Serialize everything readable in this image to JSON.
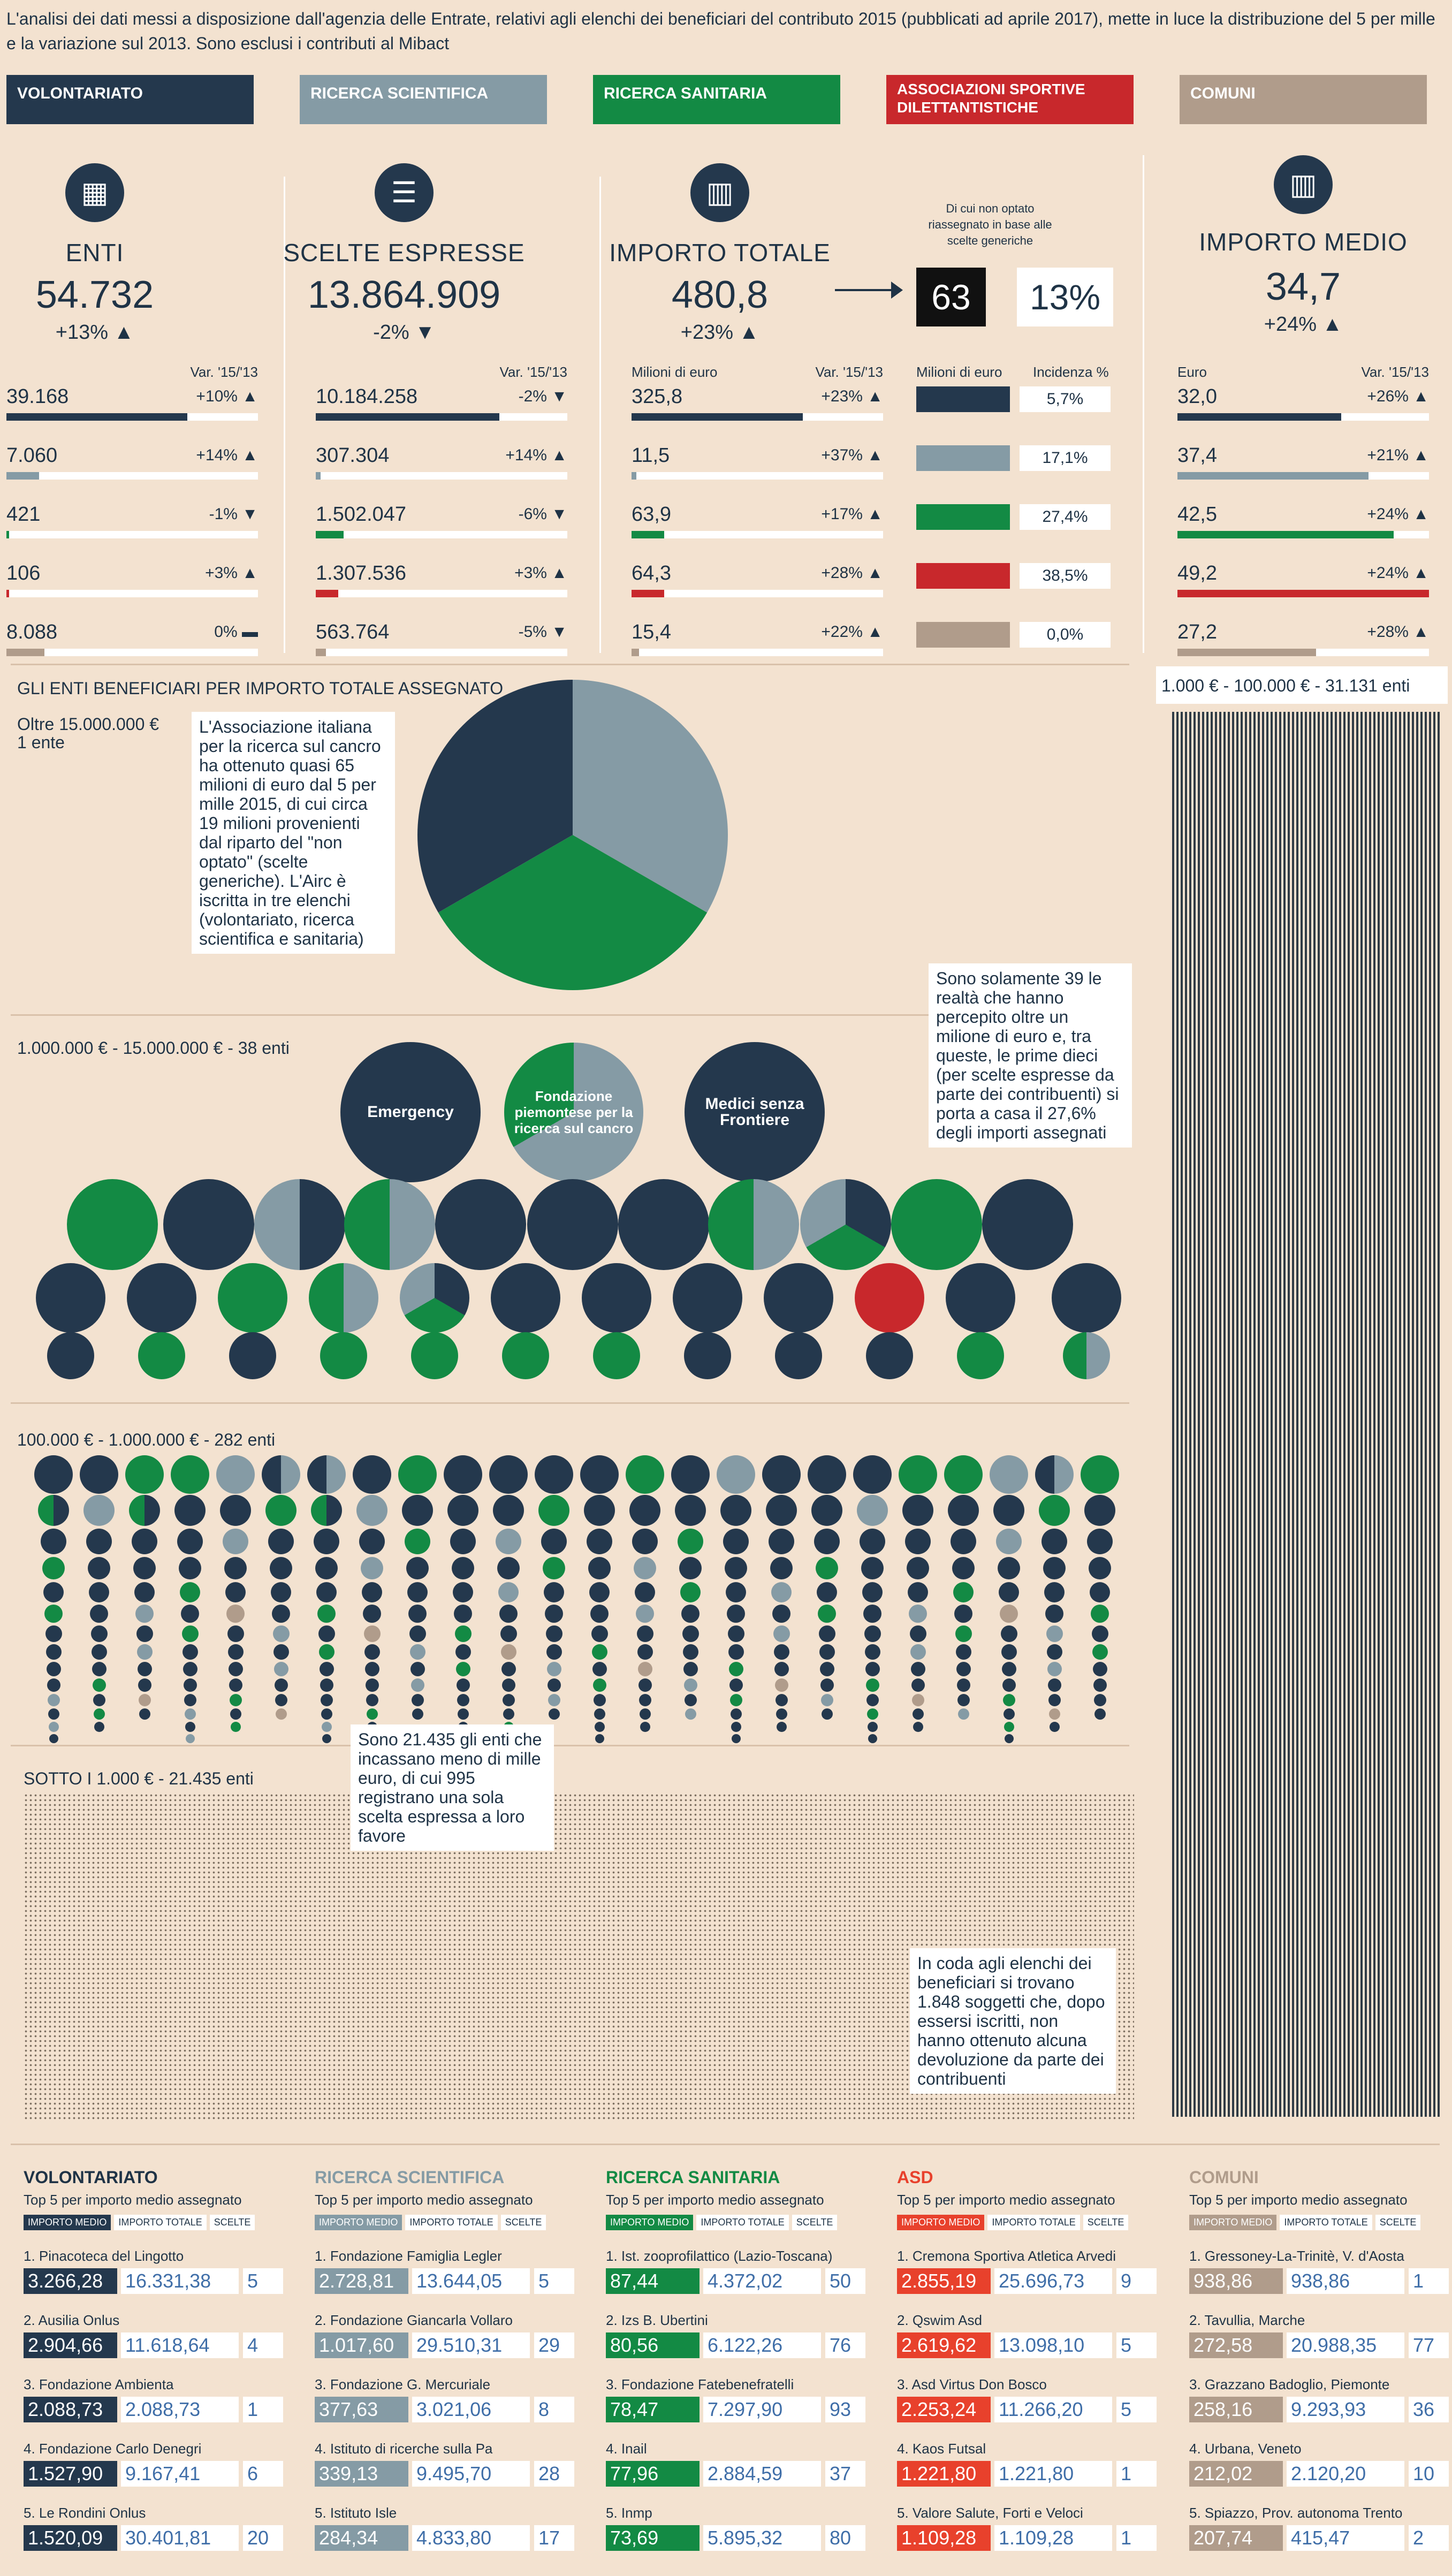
{
  "intro": "L'analisi dei dati messi a disposizione dall'agenzia delle Entrate, relativi agli elenchi dei beneficiari del contributo 2015 (pubblicati ad aprile 2017), mette in luce la distribuzione del 5 per mille e la variazione sul 2013. Sono esclusi i contributi al Mibact",
  "colors": {
    "volontariato": "#24384d",
    "ricerca_scientifica": "#859ba5",
    "ricerca_sanitaria": "#138a44",
    "asd": "#c8282c",
    "comuni": "#b09c8b",
    "background": "#f3e2d0"
  },
  "categories": [
    {
      "label": "VOLONTARIATO",
      "color": "#24384d"
    },
    {
      "label": "RICERCA SCIENTIFICA",
      "color": "#859ba5"
    },
    {
      "label": "RICERCA SANITARIA",
      "color": "#138a44"
    },
    {
      "label": "ASSOCIAZIONI SPORTIVE DILETTANTISTICHE",
      "color": "#c8282c"
    },
    {
      "label": "COMUNI",
      "color": "#b09c8b"
    }
  ],
  "stats": {
    "enti": {
      "title": "ENTI",
      "value": "54.732",
      "var": "+13%",
      "var_dir": "up",
      "sub_right": "Var. '15/'13",
      "rows": [
        {
          "value": "39.168",
          "var": "+10%",
          "dir": "up",
          "share": 0.72
        },
        {
          "value": "7.060",
          "var": "+14%",
          "dir": "up",
          "share": 0.13
        },
        {
          "value": "421",
          "var": "-1%",
          "dir": "down",
          "share": 0.01
        },
        {
          "value": "106",
          "var": "+3%",
          "dir": "up",
          "share": 0.01
        },
        {
          "value": "8.088",
          "var": "0%",
          "dir": "flat",
          "share": 0.15
        }
      ]
    },
    "scelte": {
      "title": "SCELTE ESPRESSE",
      "value": "13.864.909",
      "var": "-2%",
      "var_dir": "down",
      "sub_right": "Var. '15/'13",
      "rows": [
        {
          "value": "10.184.258",
          "var": "-2%",
          "dir": "down",
          "share": 0.73
        },
        {
          "value": "307.304",
          "var": "+14%",
          "dir": "up",
          "share": 0.02
        },
        {
          "value": "1.502.047",
          "var": "-6%",
          "dir": "down",
          "share": 0.11
        },
        {
          "value": "1.307.536",
          "var": "+3%",
          "dir": "up",
          "share": 0.09
        },
        {
          "value": "563.764",
          "var": "-5%",
          "dir": "down",
          "share": 0.04
        }
      ]
    },
    "importo": {
      "title": "IMPORTO TOTALE",
      "value": "480,8",
      "var": "+23%",
      "var_dir": "up",
      "sub_left": "Milioni di euro",
      "sub_right": "Var. '15/'13",
      "rows": [
        {
          "value": "325,8",
          "var": "+23%",
          "dir": "up",
          "share": 0.68
        },
        {
          "value": "11,5",
          "var": "+37%",
          "dir": "up",
          "share": 0.02
        },
        {
          "value": "63,9",
          "var": "+17%",
          "dir": "up",
          "share": 0.13
        },
        {
          "value": "64,3",
          "var": "+28%",
          "dir": "up",
          "share": 0.13
        },
        {
          "value": "15,4",
          "var": "+22%",
          "dir": "up",
          "share": 0.03
        }
      ]
    },
    "non_optato": {
      "caption": "Di cui non optato riassegnato in base alle scelte generiche",
      "value": "63",
      "pct": "13%",
      "sub_left": "Milioni di euro",
      "sub_right": "Incidenza %",
      "rows": [
        "5,7%",
        "17,1%",
        "27,4%",
        "38,5%",
        "0,0%"
      ]
    },
    "medio": {
      "title": "IMPORTO MEDIO",
      "value": "34,7",
      "var": "+24%",
      "var_dir": "up",
      "sub_left": "Euro",
      "sub_right": "Var. '15/'13",
      "rows": [
        {
          "value": "32,0",
          "var": "+26%",
          "dir": "up",
          "share": 0.65
        },
        {
          "value": "37,4",
          "var": "+21%",
          "dir": "up",
          "share": 0.76
        },
        {
          "value": "42,5",
          "var": "+24%",
          "dir": "up",
          "share": 0.86
        },
        {
          "value": "49,2",
          "var": "+24%",
          "dir": "up",
          "share": 1.0
        },
        {
          "value": "27,2",
          "var": "+28%",
          "dir": "up",
          "share": 0.55
        }
      ]
    }
  },
  "sections": {
    "by_amount_title": "GLI ENTI BENEFICIARI PER IMPORTO TOTALE ASSEGNATO",
    "oltre15_label": "Oltre 15.000.000 €",
    "oltre15_count": "1 ente",
    "airc_note": "L'Associazione italiana per la ricerca sul cancro ha ottenuto quasi 65 milioni di euro dal 5 per mille 2015, di cui circa 19 milioni provenienti dal riparto del \"non optato\" (scelte generiche). L'Airc è iscritta in tre elenchi (volontariato, ricerca scientifica e sanitaria)",
    "mil_title": "1.000.000 € - 15.000.000 € - 38 enti",
    "mil_note": "Sono solamente 39 le realtà che hanno percepito oltre un milione di euro e, tra queste, le prime dieci (per scelte espresse da parte dei contribuenti) si porta a casa il 27,6% degli importi assegnati",
    "big_labels": [
      "Emergency",
      "Fondazione piemontese per la ricerca sul cancro",
      "Medici senza Frontiere"
    ],
    "k100_title": "100.000 € - 1.000.000 € - 282 enti",
    "k1_title": "1.000 € - 100.000 € - 31.131 enti",
    "sotto_title": "SOTTO I 1.000 € - 21.435 enti",
    "sotto_note": "Sono 21.435 gli enti che incassano meno di mille euro, di cui 995 registrano una sola scelta espressa a loro favore",
    "coda_note": "In coda agli elenchi dei beneficiari si trovano 1.848 soggetti che, dopo essersi iscritti, non hanno ottenuto alcuna devoluzione da parte dei contribuenti"
  },
  "chart_data": {
    "type": "pie",
    "title": "Oltre 15.000.000 € - AIRC",
    "slices": [
      {
        "name": "Ricerca scientifica",
        "value": 1
      },
      {
        "name": "Ricerca sanitaria",
        "value": 1
      },
      {
        "name": "Volontariato",
        "value": 1
      }
    ]
  },
  "top5_common": {
    "subtitle": "Top 5 per importo medio assegnato",
    "tabs": [
      "IMPORTO MEDIO",
      "IMPORTO TOTALE",
      "SCELTE"
    ]
  },
  "top5": [
    {
      "title": "VOLONTARIATO",
      "color": "#24384d",
      "items": [
        {
          "name": "1. Pinacoteca del Lingotto",
          "medio": "3.266,28",
          "totale": "16.331,38",
          "scelte": "5"
        },
        {
          "name": "2. Ausilia Onlus",
          "medio": "2.904,66",
          "totale": "11.618,64",
          "scelte": "4"
        },
        {
          "name": "3. Fondazione Ambienta",
          "medio": "2.088,73",
          "totale": "2.088,73",
          "scelte": "1"
        },
        {
          "name": "4. Fondazione Carlo Denegri",
          "medio": "1.527,90",
          "totale": "9.167,41",
          "scelte": "6"
        },
        {
          "name": "5. Le Rondini Onlus",
          "medio": "1.520,09",
          "totale": "30.401,81",
          "scelte": "20"
        }
      ]
    },
    {
      "title": "RICERCA SCIENTIFICA",
      "color": "#859ba5",
      "items": [
        {
          "name": "1. Fondazione Famiglia Legler",
          "medio": "2.728,81",
          "totale": "13.644,05",
          "scelte": "5"
        },
        {
          "name": "2. Fondazione Giancarla Vollaro",
          "medio": "1.017,60",
          "totale": "29.510,31",
          "scelte": "29"
        },
        {
          "name": "3. Fondazione G. Mercuriale",
          "medio": "377,63",
          "totale": "3.021,06",
          "scelte": "8"
        },
        {
          "name": "4. Istituto di ricerche sulla Pa",
          "medio": "339,13",
          "totale": "9.495,70",
          "scelte": "28"
        },
        {
          "name": "5. Istituto Isle",
          "medio": "284,34",
          "totale": "4.833,80",
          "scelte": "17"
        }
      ]
    },
    {
      "title": "RICERCA SANITARIA",
      "color": "#138a44",
      "items": [
        {
          "name": "1. Ist. zooprofilattico (Lazio-Toscana)",
          "medio": "87,44",
          "totale": "4.372,02",
          "scelte": "50"
        },
        {
          "name": "2. Izs B. Ubertini",
          "medio": "80,56",
          "totale": "6.122,26",
          "scelte": "76"
        },
        {
          "name": "3. Fondazione Fatebenefratelli",
          "medio": "78,47",
          "totale": "7.297,90",
          "scelte": "93"
        },
        {
          "name": "4. Inail",
          "medio": "77,96",
          "totale": "2.884,59",
          "scelte": "37"
        },
        {
          "name": "5. Inmp",
          "medio": "73,69",
          "totale": "5.895,32",
          "scelte": "80"
        }
      ]
    },
    {
      "title": "ASD",
      "color": "#e8412c",
      "items": [
        {
          "name": "1. Cremona Sportiva Atletica Arvedi",
          "medio": "2.855,19",
          "totale": "25.696,73",
          "scelte": "9"
        },
        {
          "name": "2. Qswim Asd",
          "medio": "2.619,62",
          "totale": "13.098,10",
          "scelte": "5"
        },
        {
          "name": "3. Asd Virtus Don Bosco",
          "medio": "2.253,24",
          "totale": "11.266,20",
          "scelte": "5"
        },
        {
          "name": "4. Kaos Futsal",
          "medio": "1.221,80",
          "totale": "1.221,80",
          "scelte": "1"
        },
        {
          "name": "5. Valore Salute, Forti e Veloci",
          "medio": "1.109,28",
          "totale": "1.109,28",
          "scelte": "1"
        }
      ]
    },
    {
      "title": "COMUNI",
      "color": "#b09c8b",
      "items": [
        {
          "name": "1. Gressoney-La-Trinitè, V. d'Aosta",
          "medio": "938,86",
          "totale": "938,86",
          "scelte": "1"
        },
        {
          "name": "2. Tavullia, Marche",
          "medio": "272,58",
          "totale": "20.988,35",
          "scelte": "77"
        },
        {
          "name": "3. Grazzano Badoglio, Piemonte",
          "medio": "258,16",
          "totale": "9.293,93",
          "scelte": "36"
        },
        {
          "name": "4. Urbana, Veneto",
          "medio": "212,02",
          "totale": "2.120,20",
          "scelte": "10"
        },
        {
          "name": "5. Spiazzo, Prov. autonoma Trento",
          "medio": "207,74",
          "totale": "415,47",
          "scelte": "2"
        }
      ]
    }
  ]
}
